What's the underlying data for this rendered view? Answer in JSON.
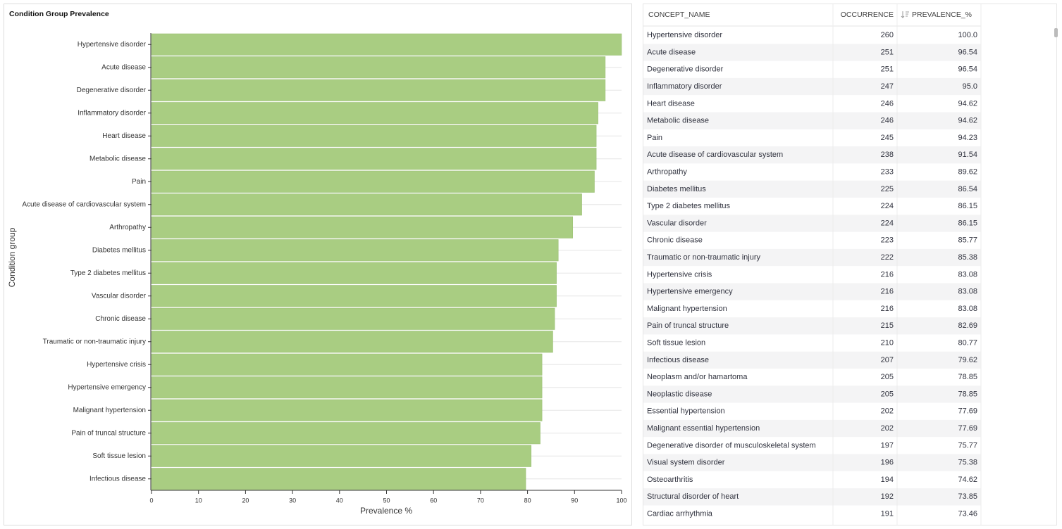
{
  "chart_data": {
    "type": "bar",
    "orientation": "horizontal",
    "title": "Condition Group Prevalence",
    "x_label": "Prevalence %",
    "y_label": "Condition group",
    "color": "#a9cd82",
    "grid": true,
    "categories": [
      "Hypertensive disorder",
      "Acute disease",
      "Degenerative disorder",
      "Inflammatory disorder",
      "Heart disease",
      "Metabolic disease",
      "Pain",
      "Acute disease of cardiovascular system",
      "Arthropathy",
      "Diabetes mellitus",
      "Type 2 diabetes mellitus",
      "Vascular disorder",
      "Chronic disease",
      "Traumatic or non-traumatic injury",
      "Hypertensive crisis",
      "Hypertensive emergency",
      "Malignant hypertension",
      "Pain of truncal structure",
      "Soft tissue lesion",
      "Infectious disease"
    ],
    "values": [
      100,
      96.54,
      96.54,
      95,
      94.62,
      94.62,
      94.23,
      91.54,
      89.62,
      86.54,
      86.15,
      86.15,
      85.77,
      85.38,
      83.08,
      83.08,
      83.08,
      82.69,
      80.77,
      79.62
    ],
    "xlim": [
      0,
      100
    ],
    "xticks": [
      0,
      10,
      20,
      30,
      40,
      50,
      60,
      70,
      80,
      90,
      100
    ]
  },
  "table": {
    "columns": [
      "CONCEPT_NAME",
      "OCCURRENCE",
      "PREVALENCE_%"
    ],
    "rows": [
      [
        "Hypertensive disorder",
        "260",
        "100.0"
      ],
      [
        "Acute disease",
        "251",
        "96.54"
      ],
      [
        "Degenerative disorder",
        "251",
        "96.54"
      ],
      [
        "Inflammatory disorder",
        "247",
        "95.0"
      ],
      [
        "Heart disease",
        "246",
        "94.62"
      ],
      [
        "Metabolic disease",
        "246",
        "94.62"
      ],
      [
        "Pain",
        "245",
        "94.23"
      ],
      [
        "Acute disease of cardiovascular system",
        "238",
        "91.54"
      ],
      [
        "Arthropathy",
        "233",
        "89.62"
      ],
      [
        "Diabetes mellitus",
        "225",
        "86.54"
      ],
      [
        "Type 2 diabetes mellitus",
        "224",
        "86.15"
      ],
      [
        "Vascular disorder",
        "224",
        "86.15"
      ],
      [
        "Chronic disease",
        "223",
        "85.77"
      ],
      [
        "Traumatic or non-traumatic injury",
        "222",
        "85.38"
      ],
      [
        "Hypertensive crisis",
        "216",
        "83.08"
      ],
      [
        "Hypertensive emergency",
        "216",
        "83.08"
      ],
      [
        "Malignant hypertension",
        "216",
        "83.08"
      ],
      [
        "Pain of truncal structure",
        "215",
        "82.69"
      ],
      [
        "Soft tissue lesion",
        "210",
        "80.77"
      ],
      [
        "Infectious disease",
        "207",
        "79.62"
      ],
      [
        "Neoplasm and/or hamartoma",
        "205",
        "78.85"
      ],
      [
        "Neoplastic disease",
        "205",
        "78.85"
      ],
      [
        "Essential hypertension",
        "202",
        "77.69"
      ],
      [
        "Malignant essential hypertension",
        "202",
        "77.69"
      ],
      [
        "Degenerative disorder of musculoskeletal system",
        "197",
        "75.77"
      ],
      [
        "Visual system disorder",
        "196",
        "75.38"
      ],
      [
        "Osteoarthritis",
        "194",
        "74.62"
      ],
      [
        "Structural disorder of heart",
        "192",
        "73.85"
      ],
      [
        "Cardiac arrhythmia",
        "191",
        "73.46"
      ]
    ]
  }
}
